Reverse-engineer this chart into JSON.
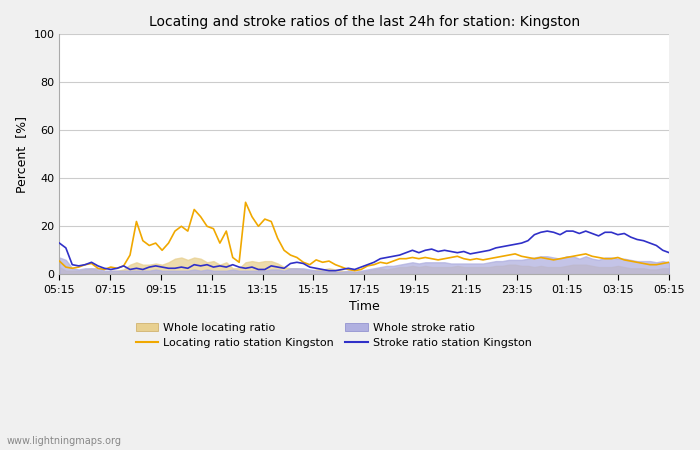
{
  "title": "Locating and stroke ratios of the last 24h for station: Kingston",
  "ylabel": "Percent  [%]",
  "xlabel": "Time",
  "xlim_labels": [
    "05:15",
    "07:15",
    "09:15",
    "11:15",
    "13:15",
    "15:15",
    "17:15",
    "19:15",
    "21:15",
    "23:15",
    "01:15",
    "03:15",
    "05:15"
  ],
  "ylim": [
    0,
    100
  ],
  "yticks": [
    0,
    20,
    40,
    60,
    80,
    100
  ],
  "watermark": "www.lightningmaps.org",
  "bg_color": "#f0f0f0",
  "plot_bg_color": "#ffffff",
  "locating_line_color": "#f0a800",
  "locating_fill_color": "#e8d090",
  "stroke_line_color": "#3030c8",
  "stroke_fill_color": "#b0b0e0",
  "locating_line": [
    5.5,
    3.0,
    2.5,
    3.0,
    4.0,
    4.5,
    2.5,
    2.0,
    3.0,
    2.5,
    3.5,
    8.0,
    22.0,
    14.0,
    12.0,
    13.0,
    10.0,
    13.0,
    18.0,
    20.0,
    18.0,
    27.0,
    24.0,
    20.0,
    19.0,
    13.0,
    18.0,
    7.0,
    5.0,
    30.0,
    24.0,
    20.0,
    23.0,
    22.0,
    15.0,
    10.0,
    8.0,
    7.0,
    5.0,
    4.0,
    6.0,
    5.0,
    5.5,
    4.0,
    3.0,
    2.0,
    1.5,
    2.0,
    3.5,
    4.0,
    5.0,
    4.5,
    5.5,
    6.5,
    6.5,
    7.0,
    6.5,
    7.0,
    6.5,
    6.0,
    6.5,
    7.0,
    7.5,
    6.5,
    6.0,
    6.5,
    6.0,
    6.5,
    7.0,
    7.5,
    8.0,
    8.5,
    7.5,
    7.0,
    6.5,
    7.0,
    6.5,
    6.0,
    6.5,
    7.0,
    7.5,
    8.0,
    8.5,
    7.5,
    7.0,
    6.5,
    6.5,
    7.0,
    6.0,
    5.5,
    5.0,
    4.5,
    4.0,
    4.0,
    4.5,
    5.0
  ],
  "locating_fill": [
    3.0,
    1.5,
    1.5,
    1.5,
    2.0,
    2.5,
    1.5,
    1.0,
    1.5,
    1.5,
    2.0,
    4.0,
    5.0,
    4.0,
    4.0,
    4.5,
    4.0,
    5.0,
    6.5,
    7.0,
    6.0,
    7.0,
    6.5,
    5.0,
    5.5,
    4.0,
    5.0,
    2.5,
    2.5,
    5.0,
    5.5,
    5.0,
    5.5,
    5.5,
    4.5,
    3.0,
    2.5,
    2.5,
    2.0,
    1.5,
    2.0,
    2.0,
    2.5,
    2.0,
    1.5,
    1.0,
    1.0,
    1.0,
    1.5,
    2.0,
    2.5,
    2.0,
    2.5,
    3.0,
    3.0,
    3.5,
    3.0,
    3.5,
    3.0,
    3.0,
    3.0,
    3.0,
    3.5,
    3.0,
    3.0,
    3.0,
    3.0,
    3.0,
    3.5,
    3.5,
    4.0,
    4.0,
    3.5,
    3.5,
    3.0,
    3.5,
    3.0,
    3.0,
    3.0,
    3.5,
    4.0,
    4.0,
    4.0,
    3.5,
    3.0,
    3.0,
    3.0,
    3.5,
    3.0,
    2.5,
    2.5,
    2.5,
    2.0,
    2.0,
    2.5,
    2.5
  ],
  "stroke_line": [
    13.0,
    11.0,
    4.0,
    3.5,
    4.0,
    5.0,
    3.5,
    2.5,
    2.0,
    2.5,
    3.5,
    2.0,
    2.5,
    2.0,
    3.0,
    3.5,
    3.0,
    2.5,
    2.5,
    3.0,
    2.5,
    4.0,
    3.5,
    4.0,
    3.0,
    3.5,
    3.0,
    4.0,
    3.0,
    2.5,
    3.0,
    2.0,
    2.0,
    3.5,
    3.0,
    2.5,
    4.5,
    5.0,
    4.5,
    3.0,
    2.5,
    2.0,
    1.5,
    1.5,
    2.0,
    2.5,
    2.0,
    3.0,
    4.0,
    5.0,
    6.5,
    7.0,
    7.5,
    8.0,
    9.0,
    10.0,
    9.0,
    10.0,
    10.5,
    9.5,
    10.0,
    9.5,
    9.0,
    9.5,
    8.5,
    9.0,
    9.5,
    10.0,
    11.0,
    11.5,
    12.0,
    12.5,
    13.0,
    14.0,
    16.5,
    17.5,
    18.0,
    17.5,
    16.5,
    18.0,
    18.0,
    17.0,
    18.0,
    17.0,
    16.0,
    17.5,
    17.5,
    16.5,
    17.0,
    15.5,
    14.5,
    14.0,
    13.0,
    12.0,
    10.0,
    9.0
  ],
  "stroke_fill": [
    7.0,
    6.0,
    2.5,
    2.0,
    2.5,
    2.5,
    2.5,
    1.5,
    1.5,
    1.5,
    1.5,
    1.5,
    1.5,
    1.5,
    1.5,
    2.0,
    1.5,
    1.5,
    1.5,
    1.5,
    1.5,
    2.0,
    1.5,
    2.0,
    1.5,
    1.5,
    1.5,
    2.0,
    1.5,
    1.5,
    1.5,
    1.5,
    1.5,
    2.0,
    2.0,
    1.5,
    2.5,
    2.5,
    2.5,
    2.0,
    1.5,
    1.5,
    1.0,
    1.0,
    1.0,
    1.5,
    1.0,
    1.5,
    2.0,
    2.5,
    3.0,
    3.5,
    3.5,
    4.0,
    4.5,
    5.0,
    4.5,
    5.0,
    5.0,
    5.0,
    5.0,
    4.5,
    4.5,
    4.5,
    4.5,
    4.5,
    4.5,
    5.0,
    5.5,
    5.5,
    6.0,
    6.0,
    6.0,
    6.5,
    7.0,
    7.5,
    7.5,
    7.0,
    6.5,
    7.5,
    7.5,
    6.5,
    7.5,
    6.5,
    6.0,
    7.0,
    7.0,
    6.5,
    6.5,
    6.0,
    5.5,
    5.5,
    5.5,
    5.0,
    5.5,
    5.0
  ]
}
